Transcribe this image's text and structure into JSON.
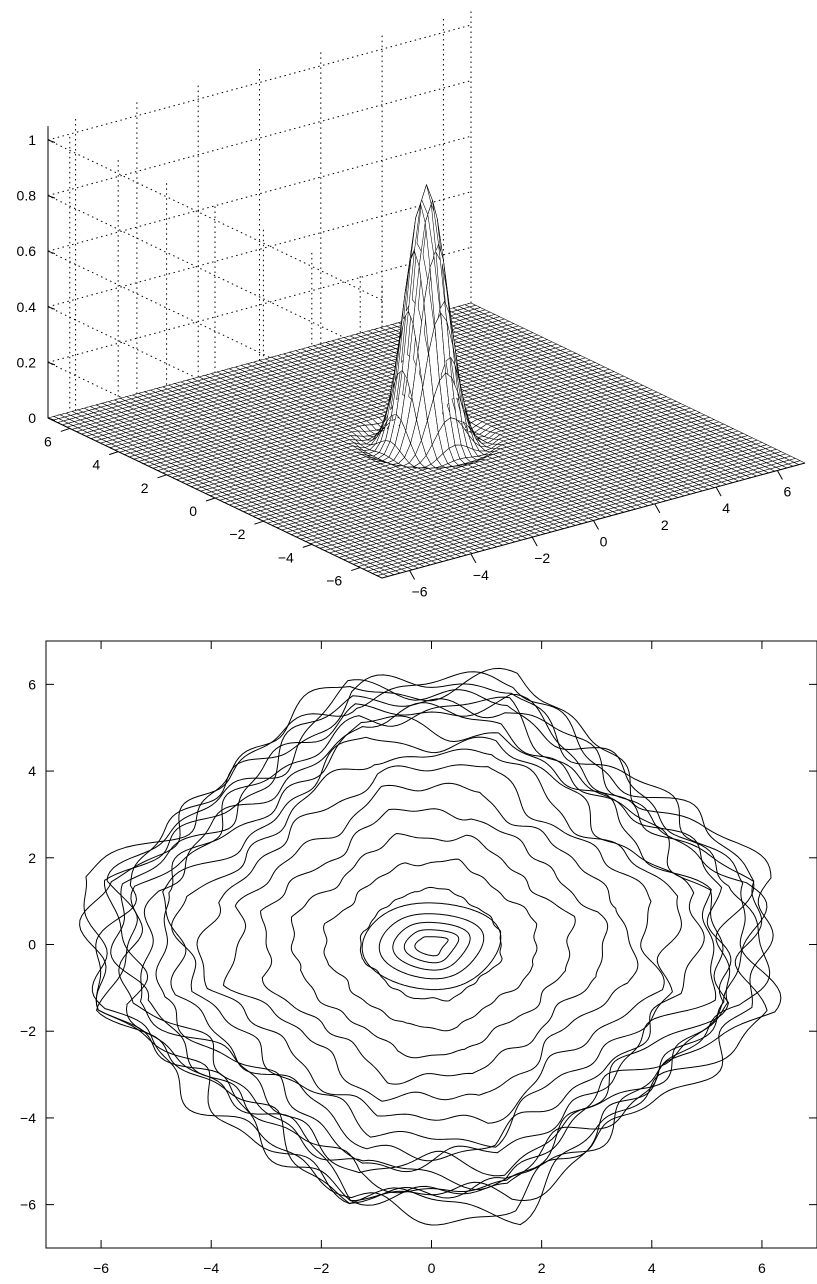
{
  "chart_data": [
    {
      "type": "surface",
      "title": "",
      "xlabel": "",
      "ylabel": "",
      "zlabel": "",
      "xlim": [
        -6.9,
        6.9
      ],
      "ylim": [
        -6.9,
        6.9
      ],
      "zlim": [
        0,
        1.05
      ],
      "grid": true,
      "mesh_size": 70,
      "peak": {
        "x": 0,
        "y": 0,
        "z": 0.92
      },
      "x_ticks": [
        -6,
        -4,
        -2,
        0,
        2,
        4,
        6
      ],
      "x_tick_labels": [
        "−6",
        "−4",
        "−2",
        "0",
        "2",
        "4",
        "6"
      ],
      "y_ticks": [
        -6,
        -4,
        -2,
        0,
        2,
        4,
        6
      ],
      "y_tick_labels": [
        "−6",
        "−4",
        "−2",
        "0",
        "2",
        "4",
        "6"
      ],
      "z_ticks": [
        0,
        0.2,
        0.4,
        0.6,
        0.8,
        1
      ],
      "z_tick_labels": [
        "0",
        "0.2",
        "0.4",
        "0.6",
        "0.8",
        "1"
      ]
    },
    {
      "type": "contour",
      "title": "",
      "xlabel": "",
      "ylabel": "",
      "xlim": [
        -7,
        7
      ],
      "ylim": [
        -7,
        7
      ],
      "grid": false,
      "center": [
        0,
        0
      ],
      "boundary": "octagon",
      "x_ticks": [
        -6,
        -4,
        -2,
        0,
        2,
        4,
        6
      ],
      "x_tick_labels": [
        "−6",
        "−4",
        "−2",
        "0",
        "2",
        "4",
        "6"
      ],
      "y_ticks": [
        -6,
        -4,
        -2,
        0,
        2,
        4,
        6
      ],
      "y_tick_labels": [
        "−6",
        "−4",
        "−2",
        "0",
        "2",
        "4",
        "6"
      ]
    }
  ]
}
